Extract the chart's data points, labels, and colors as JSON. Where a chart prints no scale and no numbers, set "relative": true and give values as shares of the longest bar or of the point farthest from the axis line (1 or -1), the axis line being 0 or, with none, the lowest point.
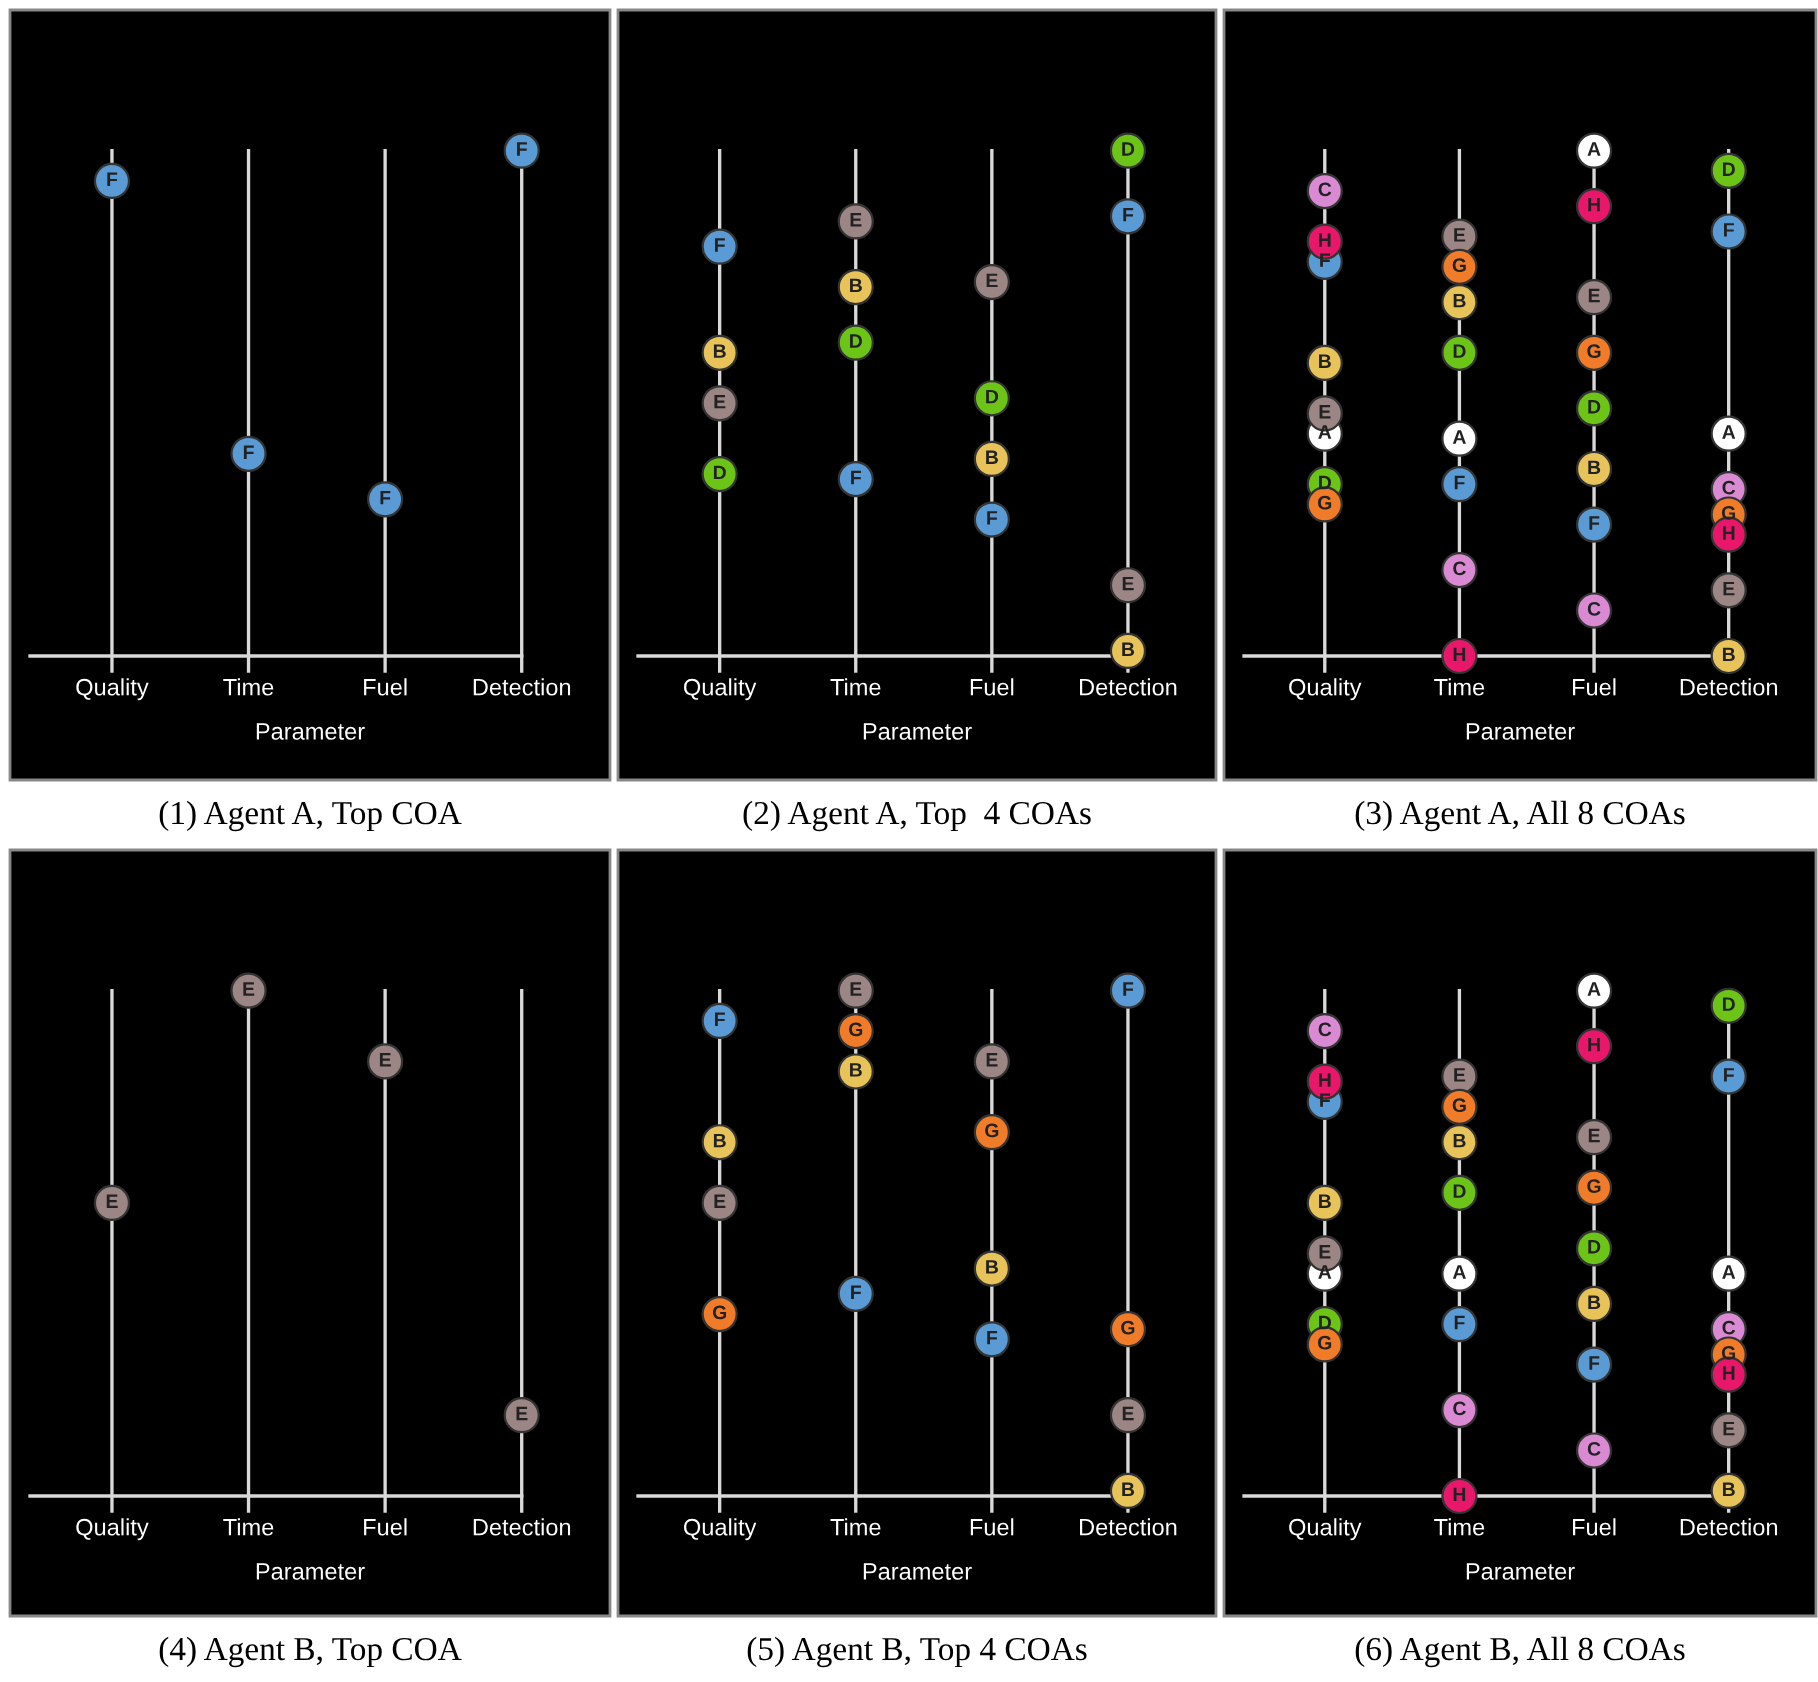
{
  "chart_data": [
    {
      "type": "scatter",
      "relative": true,
      "title": "(1) Agent A, Top COA",
      "grid": "x",
      "xlabel": "Parameter",
      "categories": [
        "Quality",
        "Time",
        "Fuel",
        "Detection"
      ],
      "legend": false,
      "marker": "circle",
      "series": [
        {
          "name": "F",
          "color": "#5b9bd5",
          "values": [
            0.94,
            0.4,
            0.31,
            1.0
          ]
        }
      ]
    },
    {
      "type": "scatter",
      "relative": true,
      "title": "(2) Agent A, Top  4 COAs",
      "grid": "x",
      "xlabel": "Parameter",
      "categories": [
        "Quality",
        "Time",
        "Fuel",
        "Detection"
      ],
      "legend": false,
      "marker": "circle",
      "series": [
        {
          "name": "B",
          "color": "#e8c35a",
          "values": [
            0.6,
            0.73,
            0.39,
            0.01
          ]
        },
        {
          "name": "D",
          "color": "#6cc417",
          "values": [
            0.36,
            0.62,
            0.51,
            1.0
          ]
        },
        {
          "name": "E",
          "color": "#9c8585",
          "values": [
            0.5,
            0.86,
            0.74,
            0.14
          ]
        },
        {
          "name": "F",
          "color": "#5b9bd5",
          "values": [
            0.81,
            0.35,
            0.27,
            0.87
          ]
        }
      ]
    },
    {
      "type": "scatter",
      "relative": true,
      "title": "(3) Agent A, All 8 COAs",
      "grid": "x",
      "xlabel": "Parameter",
      "categories": [
        "Quality",
        "Time",
        "Fuel",
        "Detection"
      ],
      "legend": false,
      "marker": "circle",
      "series": [
        {
          "name": "A",
          "color": "#ffffff",
          "values": [
            0.44,
            0.43,
            1.0,
            0.44
          ]
        },
        {
          "name": "B",
          "color": "#e8c35a",
          "values": [
            0.58,
            0.7,
            0.37,
            0.0
          ]
        },
        {
          "name": "C",
          "color": "#d98ad3",
          "values": [
            0.92,
            0.17,
            0.09,
            0.33
          ]
        },
        {
          "name": "D",
          "color": "#6cc417",
          "values": [
            0.34,
            0.6,
            0.49,
            0.96
          ]
        },
        {
          "name": "E",
          "color": "#9c8585",
          "values": [
            0.48,
            0.83,
            0.71,
            0.13
          ]
        },
        {
          "name": "F",
          "color": "#5b9bd5",
          "values": [
            0.78,
            0.34,
            0.26,
            0.84
          ]
        },
        {
          "name": "G",
          "color": "#f07c2a",
          "values": [
            0.3,
            0.77,
            0.6,
            0.28
          ]
        },
        {
          "name": "H",
          "color": "#e8176a",
          "values": [
            0.82,
            0.0,
            0.89,
            0.24
          ]
        }
      ]
    },
    {
      "type": "scatter",
      "relative": true,
      "title": "(4) Agent B, Top COA",
      "grid": "x",
      "xlabel": "Parameter",
      "categories": [
        "Quality",
        "Time",
        "Fuel",
        "Detection"
      ],
      "legend": false,
      "marker": "circle",
      "series": [
        {
          "name": "E",
          "color": "#9c8585",
          "values": [
            0.58,
            1.0,
            0.86,
            0.16
          ]
        }
      ]
    },
    {
      "type": "scatter",
      "relative": true,
      "title": "(5) Agent B, Top 4 COAs",
      "grid": "x",
      "xlabel": "Parameter",
      "categories": [
        "Quality",
        "Time",
        "Fuel",
        "Detection"
      ],
      "legend": false,
      "marker": "circle",
      "series": [
        {
          "name": "B",
          "color": "#e8c35a",
          "values": [
            0.7,
            0.84,
            0.45,
            0.01
          ]
        },
        {
          "name": "E",
          "color": "#9c8585",
          "values": [
            0.58,
            1.0,
            0.86,
            0.16
          ]
        },
        {
          "name": "F",
          "color": "#5b9bd5",
          "values": [
            0.94,
            0.4,
            0.31,
            1.0
          ]
        },
        {
          "name": "G",
          "color": "#f07c2a",
          "values": [
            0.36,
            0.92,
            0.72,
            0.33
          ]
        }
      ]
    },
    {
      "type": "scatter",
      "relative": true,
      "title": "(6) Agent B, All 8 COAs",
      "grid": "x",
      "xlabel": "Parameter",
      "categories": [
        "Quality",
        "Time",
        "Fuel",
        "Detection"
      ],
      "legend": false,
      "marker": "circle",
      "series": [
        {
          "name": "A",
          "color": "#ffffff",
          "values": [
            0.44,
            0.44,
            1.0,
            0.44
          ]
        },
        {
          "name": "B",
          "color": "#e8c35a",
          "values": [
            0.58,
            0.7,
            0.38,
            0.01
          ]
        },
        {
          "name": "C",
          "color": "#d98ad3",
          "values": [
            0.92,
            0.17,
            0.09,
            0.33
          ]
        },
        {
          "name": "D",
          "color": "#6cc417",
          "values": [
            0.34,
            0.6,
            0.49,
            0.97
          ]
        },
        {
          "name": "E",
          "color": "#9c8585",
          "values": [
            0.48,
            0.83,
            0.71,
            0.13
          ]
        },
        {
          "name": "F",
          "color": "#5b9bd5",
          "values": [
            0.78,
            0.34,
            0.26,
            0.83
          ]
        },
        {
          "name": "G",
          "color": "#f07c2a",
          "values": [
            0.3,
            0.77,
            0.61,
            0.28
          ]
        },
        {
          "name": "H",
          "color": "#e8176a",
          "values": [
            0.82,
            0.0,
            0.89,
            0.24
          ]
        }
      ]
    }
  ]
}
